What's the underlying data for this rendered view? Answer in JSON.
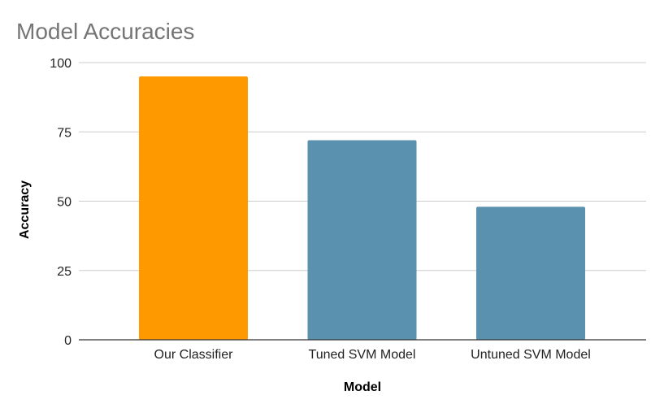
{
  "chart_data": {
    "type": "bar",
    "title": "Model Accuracies",
    "xlabel": "Model",
    "ylabel": "Accuracy",
    "categories": [
      "Our Classifier",
      "Tuned SVM Model",
      "Untuned SVM Model"
    ],
    "values": [
      95,
      72,
      48
    ],
    "bar_colors": [
      "#FF9900",
      "#5A91AF",
      "#5A91AF"
    ],
    "ylim": [
      0,
      100
    ],
    "yticks": [
      0,
      25,
      50,
      75,
      100
    ],
    "grid": true,
    "legend": "none"
  }
}
